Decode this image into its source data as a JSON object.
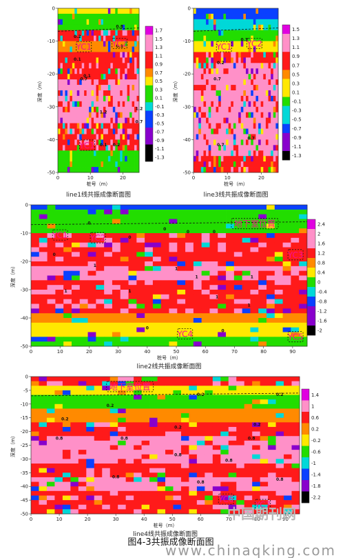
{
  "figure_title": "图4-3共振成像断面图",
  "watermark": {
    "cn": "中国期刊网",
    "url": "www.chinaqking.com"
  },
  "colors": {
    "deep_magenta": "#e000e0",
    "pink": "#ff90c8",
    "red": "#ff1a1a",
    "orange": "#ff8a00",
    "yellow": "#ffe800",
    "green": "#22dd00",
    "cyan": "#00d8d8",
    "blue": "#0a40ff",
    "purple": "#8800cc",
    "black": "#000000"
  },
  "chart_data": [
    {
      "type": "heatmap",
      "caption": "line1线共振成像断面图",
      "ylabel": "深度（m）",
      "xlabel": "桩号（m）",
      "xlim": [
        0,
        25
      ],
      "ylim": [
        -50,
        0
      ],
      "xticks": [
        "0",
        "10",
        "20"
      ],
      "yticks": [
        "0",
        "-10",
        "-20",
        "-30",
        "-40",
        "-50"
      ],
      "colorbar": [
        "1.7",
        "1.5",
        "1.3",
        "1.1",
        "0.9",
        "0.7",
        "0.5",
        "0.3",
        "0.1",
        "-0.1",
        "-0.3",
        "-0.5",
        "-0.7",
        "-0.9",
        "-1.1",
        "-1.3"
      ],
      "anomalies": [
        {
          "label": "YC1",
          "x": 8,
          "y": -12
        },
        {
          "label": "YC2",
          "x": 19,
          "y": -11
        },
        {
          "label": "YC1",
          "x": 9,
          "y": -42
        }
      ],
      "contour_labels": [
        {
          "text": "0.8",
          "x": 19,
          "y": -6
        },
        {
          "text": "0.2",
          "x": 6,
          "y": -9
        },
        {
          "text": "0.1",
          "x": 19,
          "y": -12
        },
        {
          "text": "0.1",
          "x": 6,
          "y": -16
        },
        {
          "text": "0.1",
          "x": 9,
          "y": -21
        },
        {
          "text": "0.7",
          "x": 8,
          "y": -22
        },
        {
          "text": "1.2",
          "x": 25,
          "y": -31
        },
        {
          "text": "1.2",
          "x": 14,
          "y": -32
        },
        {
          "text": "0.7",
          "x": 25,
          "y": -35
        },
        {
          "text": "0.2",
          "x": 18,
          "y": -42
        },
        {
          "text": "0.1",
          "x": 14,
          "y": -42
        }
      ]
    },
    {
      "type": "heatmap",
      "caption": "line3线共振成像断面图",
      "ylabel": "深度（m）",
      "xlabel": "桩号（m）",
      "xlim": [
        0,
        25
      ],
      "ylim": [
        -50,
        0
      ],
      "xticks": [
        "0",
        "10",
        "20"
      ],
      "yticks": [
        "0",
        "-10",
        "-20",
        "-30",
        "-40",
        "-50"
      ],
      "colorbar": [
        "1.5",
        "1.3",
        "1.1",
        "0.9",
        "0.7",
        "0.5",
        "0.3",
        "0.1",
        "-0.1",
        "-0.3",
        "-0.5",
        "-0.7",
        "-0.9",
        "-1.1",
        "-1.3"
      ],
      "anomalies": [
        {
          "label": "YC1",
          "x": 9,
          "y": -12
        },
        {
          "label": "YC2",
          "x": 18,
          "y": -11
        }
      ],
      "contour_labels": [
        {
          "text": "0.3",
          "x": 15,
          "y": -10
        },
        {
          "text": "0.2",
          "x": 8,
          "y": -17
        },
        {
          "text": "0.7",
          "x": 7,
          "y": -22
        },
        {
          "text": "0.7",
          "x": 17,
          "y": -40
        },
        {
          "text": "0.7",
          "x": 8,
          "y": -42
        }
      ]
    },
    {
      "type": "heatmap",
      "caption": "line2线共振成像断面图",
      "ylabel": "深度（m）",
      "xlabel": "桩号（m）",
      "xlim": [
        0,
        95
      ],
      "ylim": [
        -50,
        0
      ],
      "xticks": [
        "0",
        "10",
        "20",
        "30",
        "40",
        "50",
        "60",
        "70",
        "80",
        "90"
      ],
      "yticks": [
        "0",
        "-10",
        "-20",
        "-30",
        "-40",
        "-50"
      ],
      "colorbar": [
        "2.4",
        "2",
        "1.6",
        "1.2",
        "0.8",
        "0.4",
        "0",
        "-0.4",
        "-0.8",
        "-1.2",
        "-1.6",
        "-2"
      ],
      "anomalies": [
        {
          "label": "YC1",
          "x": 10,
          "y": -11
        },
        {
          "label": "YC2",
          "x": 23,
          "y": -12
        },
        {
          "label": "地下室位置",
          "x": 77,
          "y": -7
        },
        {
          "label": "YC3",
          "x": 91,
          "y": -18
        },
        {
          "label": "YC4",
          "x": 53,
          "y": -46
        },
        {
          "label": "YC5",
          "x": 91,
          "y": -47
        }
      ],
      "contour_labels": [
        {
          "text": "0",
          "x": 20,
          "y": -7
        },
        {
          "text": "0",
          "x": 34,
          "y": -12
        },
        {
          "text": "0",
          "x": 46,
          "y": -9
        },
        {
          "text": "0",
          "x": 54,
          "y": -10
        },
        {
          "text": "0",
          "x": 63,
          "y": -10
        },
        {
          "text": "0",
          "x": 8,
          "y": -18
        },
        {
          "text": "1",
          "x": 22,
          "y": -22
        },
        {
          "text": "1",
          "x": 50,
          "y": -23
        },
        {
          "text": "1",
          "x": 57,
          "y": -26
        },
        {
          "text": "1",
          "x": 76,
          "y": -26
        },
        {
          "text": "1",
          "x": 12,
          "y": -31
        },
        {
          "text": "1",
          "x": 34,
          "y": -31
        },
        {
          "text": "1",
          "x": 64,
          "y": -33
        },
        {
          "text": "1",
          "x": 75,
          "y": -36
        },
        {
          "text": "0",
          "x": 40,
          "y": -44
        },
        {
          "text": "0",
          "x": 66,
          "y": -45
        }
      ]
    },
    {
      "type": "heatmap",
      "caption": "line4线共振成像断面图",
      "ylabel": "深度（m）",
      "xlabel": "桩号（m）",
      "xlim": [
        0,
        95
      ],
      "ylim": [
        -50,
        0
      ],
      "xticks": [
        "0",
        "10",
        "20",
        "30",
        "40",
        "50",
        "60",
        "70",
        "80",
        "90"
      ],
      "yticks": [
        "0",
        "-5",
        "-10",
        "-15",
        "-20",
        "-25",
        "-30",
        "-35",
        "-40",
        "-45",
        "-50"
      ],
      "colorbar": [
        "1.4",
        "1",
        "0.6",
        "0.2",
        "-0.2",
        "-0.6",
        "-1",
        "-1.4",
        "-1.8",
        "-2.2"
      ],
      "anomalies": [
        {
          "label": "地下室位置",
          "x": 35,
          "y": -4
        },
        {
          "label": "YC6",
          "x": 69,
          "y": -45
        },
        {
          "label": "YC7",
          "x": 82,
          "y": -47
        }
      ],
      "contour_labels": [
        {
          "text": "0.2",
          "x": 60,
          "y": -7
        },
        {
          "text": "0.2",
          "x": 28,
          "y": -11
        },
        {
          "text": "0.2",
          "x": 88,
          "y": -7
        },
        {
          "text": "0.2",
          "x": 12,
          "y": -16
        },
        {
          "text": "0.2",
          "x": 52,
          "y": -19
        },
        {
          "text": "0.2",
          "x": 80,
          "y": -18
        },
        {
          "text": "0.8",
          "x": 10,
          "y": -23
        },
        {
          "text": "0.8",
          "x": 33,
          "y": -23
        },
        {
          "text": "0.8",
          "x": 78,
          "y": -23
        },
        {
          "text": "0.8",
          "x": 52,
          "y": -29
        },
        {
          "text": "0.8",
          "x": 70,
          "y": -31
        },
        {
          "text": "0.8",
          "x": 30,
          "y": -37
        },
        {
          "text": "0.8",
          "x": 60,
          "y": -39
        },
        {
          "text": "0.8",
          "x": 88,
          "y": -38
        }
      ]
    }
  ]
}
